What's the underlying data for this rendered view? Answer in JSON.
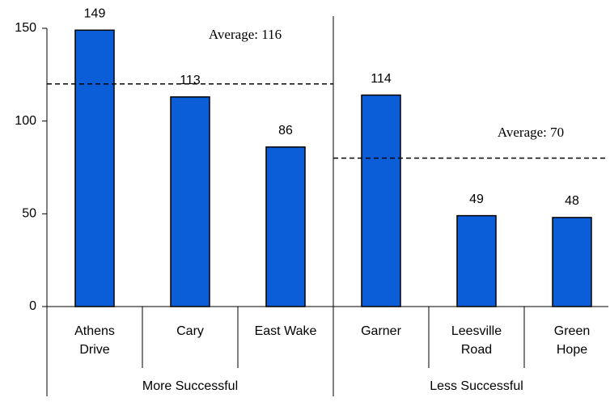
{
  "chart_data": {
    "type": "bar",
    "categories": [
      "Athens Drive",
      "Cary",
      "East Wake",
      "Garner",
      "Leesville Road",
      "Green Hope"
    ],
    "values": [
      149,
      113,
      86,
      114,
      49,
      48
    ],
    "color": "#0b5ed7",
    "ylim": [
      0,
      150
    ],
    "yticks": [
      0,
      50,
      100,
      150
    ],
    "groups": [
      {
        "name": "More Successful",
        "annotation": "Average: 116",
        "reference_line": 120
      },
      {
        "name": "Less Successful",
        "annotation": "Average: 70",
        "reference_line": 80
      }
    ]
  }
}
